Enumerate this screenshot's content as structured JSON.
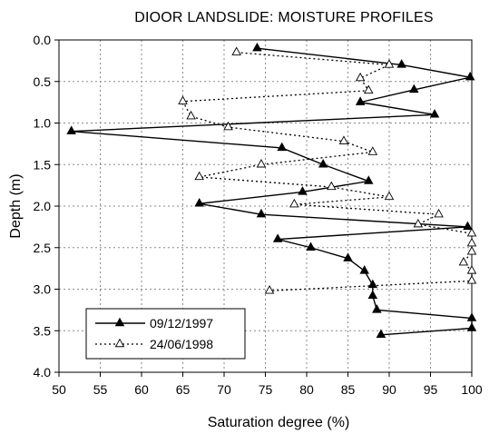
{
  "chart_data": {
    "type": "line",
    "title": "DIOOR LANDSLIDE: MOISTURE PROFILES",
    "xlabel": "Saturation degree (%)",
    "ylabel": "Depth (m)",
    "xlim": [
      50,
      100
    ],
    "ylim": [
      0,
      4
    ],
    "y_inverted": true,
    "grid": true,
    "legend_placement": "bottom-left",
    "x_ticks": [
      "50",
      "55",
      "60",
      "65",
      "70",
      "75",
      "80",
      "85",
      "90",
      "95",
      "100"
    ],
    "y_ticks": [
      "0.0",
      "0.5",
      "1.0",
      "1.5",
      "2.0",
      "2.5",
      "3.0",
      "3.5",
      "4.0"
    ],
    "series": [
      {
        "name": "09/12/1997",
        "style": "solid",
        "marker": "filled-triangle",
        "points": [
          [
            74.0,
            0.1
          ],
          [
            91.5,
            0.3
          ],
          [
            99.8,
            0.45
          ],
          [
            93.0,
            0.6
          ],
          [
            86.5,
            0.75
          ],
          [
            95.5,
            0.9
          ],
          [
            51.5,
            1.1
          ],
          [
            77.0,
            1.3
          ],
          [
            82.0,
            1.5
          ],
          [
            87.5,
            1.7
          ],
          [
            79.5,
            1.83
          ],
          [
            67.0,
            1.97
          ],
          [
            74.5,
            2.1
          ],
          [
            99.5,
            2.25
          ],
          [
            76.5,
            2.4
          ],
          [
            80.5,
            2.5
          ],
          [
            85.0,
            2.63
          ],
          [
            87.0,
            2.78
          ],
          [
            88.0,
            2.95
          ],
          [
            88.0,
            3.08
          ],
          [
            88.5,
            3.25
          ],
          [
            100.0,
            3.35
          ],
          [
            100.0,
            3.47
          ],
          [
            89.0,
            3.55
          ]
        ]
      },
      {
        "name": "24/06/1998",
        "style": "dotted",
        "marker": "open-triangle",
        "points": [
          [
            71.5,
            0.15
          ],
          [
            90.0,
            0.3
          ],
          [
            86.5,
            0.46
          ],
          [
            87.5,
            0.61
          ],
          [
            65.0,
            0.74
          ],
          [
            66.0,
            0.92
          ],
          [
            70.5,
            1.05
          ],
          [
            84.5,
            1.22
          ],
          [
            88.0,
            1.35
          ],
          [
            74.5,
            1.5
          ],
          [
            67.0,
            1.65
          ],
          [
            83.0,
            1.77
          ],
          [
            90.0,
            1.89
          ],
          [
            78.5,
            1.98
          ],
          [
            96.0,
            2.1
          ],
          [
            93.5,
            2.22
          ],
          [
            100.0,
            2.33
          ],
          [
            100.0,
            2.45
          ],
          [
            100.0,
            2.55
          ],
          [
            99.0,
            2.68
          ],
          [
            100.0,
            2.78
          ],
          [
            100.0,
            2.9
          ],
          [
            75.5,
            3.02
          ]
        ]
      }
    ]
  }
}
